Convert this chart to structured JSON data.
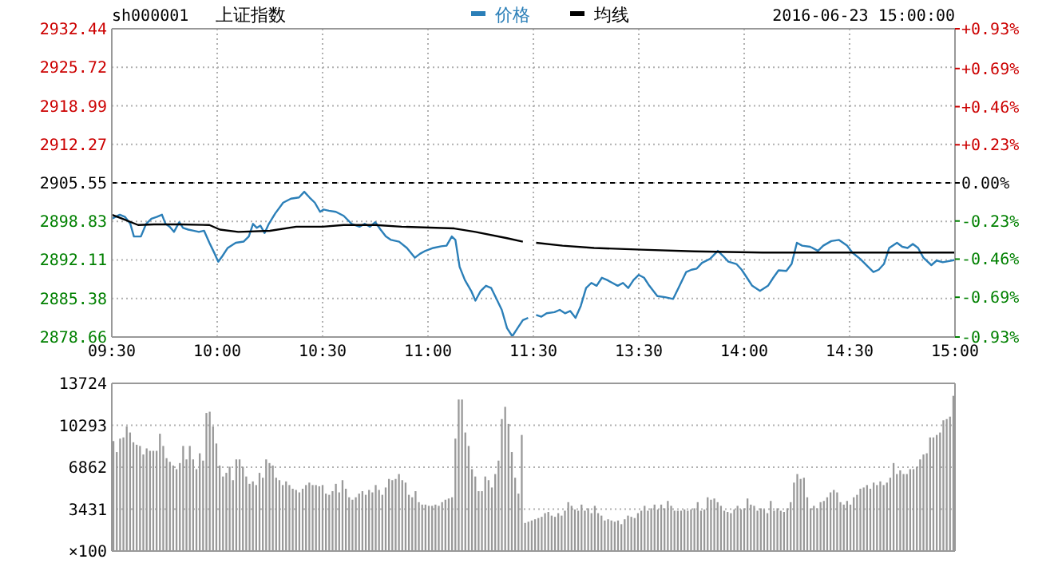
{
  "chart_data": [
    {
      "type": "line",
      "title": "上证指数",
      "subtitle": "sh000001",
      "legend": "top",
      "grid": true,
      "xlim": [
        9.5,
        11.5
      ],
      "xticks": [
        {
          "value": 9.5,
          "label": "09:30"
        },
        {
          "value": 10,
          "label": "10:00"
        },
        {
          "value": 10.5,
          "label": "10:30"
        },
        {
          "value": 11,
          "label": "11:00"
        },
        {
          "value": 11.5,
          "label": "11:30"
        }
      ],
      "ylim": [
        2878.66,
        2932.44
      ],
      "yticks": [
        2878.66,
        2885.38,
        2892.11,
        2898.83,
        2905.55,
        2912.27,
        2918.99,
        2925.72,
        2932.44
      ],
      "ref_lines": [
        {
          "axis": "y",
          "value": 2905.55,
          "color": "#000000",
          "line_style": "dashed"
        }
      ],
      "series": [
        {
          "name": "价格",
          "color": "#2b7fb8",
          "x": [
            9.5,
            9.538,
            9.563,
            9.588,
            9.605,
            9.638,
            9.663,
            9.688,
            9.713,
            9.738,
            9.755,
            9.775,
            9.795,
            9.82,
            9.838,
            9.863,
            9.888,
            9.913,
            9.938,
            9.963,
            9.988,
            10.005,
            10.025,
            10.05,
            10.088,
            10.125,
            10.15,
            10.17,
            10.188,
            10.205,
            10.225,
            10.245,
            10.275,
            10.313,
            10.35,
            10.388,
            10.413,
            10.438,
            10.463,
            10.488,
            10.505,
            10.53,
            10.563,
            10.6,
            10.638,
            10.675,
            10.7,
            10.725,
            10.75,
            10.775,
            10.8,
            10.825,
            10.863,
            10.9,
            10.938,
            10.963,
            10.988,
            11.025,
            11.063,
            11.088,
            11.113,
            11.13,
            11.15,
            11.175,
            11.205,
            11.225,
            11.25,
            11.275,
            11.3,
            11.325,
            11.35,
            11.375,
            11.4,
            11.425,
            11.45,
            11.475
          ],
          "values": [
            2899.3,
            2900.0,
            2899.6,
            2898.4,
            2896.2,
            2896.2,
            2898.4,
            2899.3,
            2899.6,
            2900.0,
            2898.4,
            2897.9,
            2897.0,
            2898.7,
            2897.7,
            2897.4,
            2897.2,
            2897.0,
            2897.2,
            2895.1,
            2893.2,
            2891.8,
            2892.8,
            2894.2,
            2895.1,
            2895.3,
            2896.2,
            2898.4,
            2897.7,
            2898.1,
            2896.8,
            2898.4,
            2900.2,
            2902.1,
            2902.8,
            2903.0,
            2904.0,
            2903.0,
            2902.1,
            2900.5,
            2900.9,
            2900.7,
            2900.5,
            2899.8,
            2898.4,
            2897.9,
            2898.4,
            2897.9,
            2898.7,
            2897.4,
            2896.2,
            2895.6,
            2895.3,
            2894.2,
            2892.5,
            2893.2,
            2893.7,
            2894.2,
            2894.5,
            2894.6,
            2896.2,
            2895.6,
            2890.9,
            2888.6,
            2886.7,
            2885.0,
            2886.7,
            2887.6,
            2887.2,
            2885.3,
            2883.4,
            2880.2,
            2878.8,
            2880.2,
            2881.6,
            2882.0
          ]
        },
        {
          "name": "均线",
          "color": "#000000",
          "x": [
            9.5,
            9.55,
            9.625,
            9.7,
            9.825,
            9.963,
            10.013,
            10.1,
            10.25,
            10.375,
            10.5,
            10.6,
            10.75,
            10.875,
            11.125,
            11.225,
            11.375,
            11.45
          ],
          "values": [
            2900.0,
            2899.3,
            2898.2,
            2898.3,
            2898.3,
            2898.2,
            2897.4,
            2897.0,
            2897.2,
            2897.9,
            2897.9,
            2898.2,
            2898.2,
            2897.9,
            2897.6,
            2897.0,
            2895.9,
            2895.3
          ]
        }
      ]
    },
    {
      "type": "line",
      "grid": true,
      "tick_labels": "x",
      "annotations": [
        "2016-06-23 15:00:00"
      ],
      "xlim": [
        13,
        15
      ],
      "xticks": [
        {
          "value": 13.5,
          "label": "13:30"
        },
        {
          "value": 14,
          "label": "14:00"
        },
        {
          "value": 14.5,
          "label": "14:30"
        },
        {
          "value": 15,
          "label": "15:00"
        }
      ],
      "ylim": [
        2878.66,
        2932.44
      ],
      "yticks": [
        2878.66,
        2885.38,
        2892.11,
        2898.83,
        2905.55,
        2912.27,
        2918.99,
        2925.72,
        2932.44
      ],
      "y2lim": [
        -0.93,
        0.93
      ],
      "y2ticks": [
        {
          "value": -0.93,
          "label": "-0.93%"
        },
        {
          "value": -0.69,
          "label": "-0.69%"
        },
        {
          "value": -0.46,
          "label": "-0.46%"
        },
        {
          "value": -0.23,
          "label": "-0.23%"
        },
        {
          "value": 0,
          "label": "0.00%"
        },
        {
          "value": 0.23,
          "label": "+0.23%"
        },
        {
          "value": 0.46,
          "label": "+0.46%"
        },
        {
          "value": 0.69,
          "label": "+0.69%"
        },
        {
          "value": 0.93,
          "label": "+0.93%"
        }
      ],
      "ref_lines": [
        {
          "axis": "y",
          "value": 2905.55,
          "color": "#000000",
          "line_style": "dashed"
        }
      ],
      "series": [
        {
          "color": "#2b7fb8",
          "x": [
            13.013,
            13.038,
            13.063,
            13.1,
            13.125,
            13.15,
            13.175,
            13.2,
            13.225,
            13.25,
            13.275,
            13.3,
            13.325,
            13.35,
            13.375,
            13.4,
            13.425,
            13.45,
            13.475,
            13.5,
            13.525,
            13.55,
            13.588,
            13.625,
            13.663,
            13.688,
            13.725,
            13.75,
            13.775,
            13.8,
            13.838,
            13.875,
            13.9,
            13.925,
            13.963,
            13.988,
            14.013,
            14.038,
            14.075,
            14.113,
            14.138,
            14.163,
            14.2,
            14.225,
            14.25,
            14.275,
            14.313,
            14.35,
            14.375,
            14.413,
            14.45,
            14.488,
            14.513,
            14.55,
            14.588,
            14.613,
            14.638,
            14.663,
            14.688,
            14.725,
            14.75,
            14.775,
            14.8,
            14.825,
            14.85,
            14.888,
            14.913,
            14.942,
            15
          ],
          "values": [
            2882.5,
            2882.2,
            2882.8,
            2883.0,
            2883.4,
            2882.8,
            2883.2,
            2882.0,
            2884.1,
            2887.2,
            2888.1,
            2887.6,
            2889.0,
            2888.6,
            2888.1,
            2887.6,
            2888.1,
            2887.2,
            2888.6,
            2889.5,
            2889.0,
            2887.6,
            2885.8,
            2885.6,
            2885.3,
            2887.2,
            2890.0,
            2890.4,
            2890.6,
            2891.6,
            2892.3,
            2893.7,
            2892.8,
            2891.8,
            2891.4,
            2890.4,
            2889.0,
            2887.6,
            2886.7,
            2887.6,
            2889.0,
            2890.3,
            2890.2,
            2891.4,
            2895.1,
            2894.6,
            2894.4,
            2893.7,
            2894.6,
            2895.4,
            2895.6,
            2894.6,
            2893.4,
            2892.3,
            2890.9,
            2890.0,
            2890.4,
            2891.4,
            2894.2,
            2895.1,
            2894.4,
            2894.2,
            2894.9,
            2894.2,
            2892.5,
            2891.2,
            2892.0,
            2891.7,
            2892.1
          ]
        },
        {
          "color": "#000000",
          "x": [
            13.013,
            13.138,
            13.288,
            13.513,
            13.763,
            14.088,
            15
          ],
          "values": [
            2895.1,
            2894.6,
            2894.2,
            2893.9,
            2893.6,
            2893.4,
            2893.4
          ]
        }
      ]
    },
    {
      "type": "bar",
      "grid": "y",
      "tick_labels": "y",
      "color": "#999999",
      "ylabel": "×100",
      "ylim": [
        0,
        13724
      ],
      "yticks": [
        {
          "value": 0,
          "label": null
        },
        3431,
        6862,
        10293,
        13724
      ],
      "categories": [
        null,
        null,
        null,
        null,
        null,
        null,
        null,
        null,
        null,
        null,
        null,
        null,
        null,
        null,
        null,
        null,
        null,
        null,
        null,
        null,
        null,
        null,
        null,
        null,
        null,
        null,
        null,
        null,
        null,
        null,
        null,
        null,
        null,
        null,
        null,
        null,
        null,
        null,
        null,
        null,
        null,
        null,
        null,
        null,
        null,
        null,
        null,
        null,
        null,
        null,
        null,
        null,
        null,
        null,
        null,
        null,
        null,
        null,
        null,
        null,
        null,
        null,
        null,
        null,
        null,
        null,
        null,
        null,
        null,
        null,
        null,
        null,
        null,
        null,
        null,
        null,
        null,
        null,
        null,
        null,
        null,
        null,
        null,
        null,
        null,
        null,
        null,
        null,
        null,
        null,
        null,
        null,
        null,
        null,
        null,
        null,
        null,
        null,
        null,
        null,
        null,
        null,
        null,
        null,
        null,
        null,
        null,
        null,
        null,
        null,
        null,
        null,
        null,
        null,
        null,
        null,
        null,
        null,
        null,
        null,
        null,
        null,
        null,
        null,
        null,
        null,
        null,
        null,
        null,
        null,
        null,
        null,
        null,
        null,
        null,
        null,
        null,
        null,
        null,
        null,
        null,
        null,
        null,
        null,
        null,
        null,
        null,
        null,
        null,
        null,
        null,
        null,
        null,
        null,
        null,
        null,
        null,
        null,
        null,
        null,
        null,
        null,
        null,
        null,
        null,
        null,
        null,
        null,
        null,
        null,
        null,
        null,
        null,
        null,
        null,
        null,
        null,
        null,
        null,
        null,
        null,
        null,
        null,
        null,
        null,
        null,
        null,
        null,
        null,
        null,
        null,
        null,
        null,
        null,
        null,
        null,
        null,
        null,
        null,
        null,
        null,
        null,
        null,
        null,
        null,
        null,
        null,
        null,
        null,
        null,
        null,
        null,
        null,
        null,
        null,
        null,
        null,
        null,
        null,
        null,
        null,
        null,
        null,
        null,
        null,
        null,
        null,
        null,
        null,
        null,
        null,
        null,
        null,
        null,
        null,
        null,
        null,
        null,
        null,
        null,
        null,
        null,
        null,
        null,
        null,
        null,
        null,
        null,
        null,
        null,
        null,
        null,
        null,
        null
      ],
      "values": [
        9000,
        8100,
        9200,
        9300,
        10200,
        9700,
        8900,
        8700,
        8600,
        7900,
        8400,
        8200,
        8200,
        8200,
        9600,
        8600,
        7600,
        7300,
        7000,
        6700,
        7200,
        8600,
        7500,
        8600,
        7500,
        6700,
        8000,
        7400,
        11300,
        11400,
        10200,
        8800,
        7000,
        6100,
        6400,
        6900,
        5800,
        7500,
        7500,
        6900,
        6100,
        5500,
        5700,
        5400,
        6400,
        6000,
        7500,
        7200,
        7000,
        6000,
        5800,
        5400,
        5700,
        5400,
        5100,
        5000,
        4800,
        5100,
        5400,
        5600,
        5400,
        5400,
        5300,
        5400,
        4700,
        4600,
        4900,
        5500,
        4800,
        5800,
        5100,
        4400,
        4200,
        4400,
        4700,
        4900,
        4600,
        5000,
        4800,
        5400,
        5000,
        4600,
        5200,
        5900,
        5800,
        5900,
        6300,
        5800,
        5600,
        4600,
        4400,
        4900,
        4000,
        3800,
        3800,
        3700,
        3700,
        3800,
        3700,
        4000,
        4200,
        4300,
        4400,
        9200,
        12400,
        12400,
        9700,
        8600,
        6700,
        6100,
        4900,
        4900,
        6100,
        5800,
        5200,
        6300,
        7400,
        10800,
        11800,
        10400,
        8100,
        6000,
        4700,
        9500,
        2300,
        2400,
        2500,
        2600,
        2700,
        2800,
        3100,
        3200,
        2900,
        2800,
        3100,
        2900,
        3300,
        4000,
        3700,
        3400,
        3300,
        3800,
        3300,
        3500,
        3100,
        3700,
        3100,
        2900,
        2500,
        2600,
        2500,
        2400,
        2500,
        2200,
        2600,
        2900,
        2800,
        2700,
        3100,
        3300,
        3700,
        3300,
        3500,
        3800,
        3400,
        3800,
        3500,
        4100,
        3700,
        3300,
        3300,
        3300,
        3400,
        3300,
        3400,
        3500,
        4000,
        3300,
        3400,
        4400,
        4200,
        4300,
        4000,
        3700,
        3300,
        3200,
        3100,
        3400,
        3700,
        3400,
        3500,
        4300,
        3800,
        3700,
        3300,
        3500,
        3400,
        3100,
        4100,
        3300,
        3500,
        3300,
        3200,
        3500,
        4000,
        5600,
        6300,
        5900,
        6000,
        4400,
        3500,
        3700,
        3500,
        4000,
        4100,
        4400,
        4800,
        5000,
        4800,
        4000,
        3800,
        4100,
        3800,
        4400,
        4600,
        5100,
        5200,
        5400,
        5100,
        5600,
        5400,
        5700,
        5400,
        5600,
        6000,
        7200,
        6300,
        6600,
        6300,
        6300,
        6700,
        6700,
        6900,
        7500,
        7900,
        8000,
        9300,
        9300,
        9500,
        9700,
        10700,
        10800,
        11000,
        12700
      ]
    }
  ]
}
